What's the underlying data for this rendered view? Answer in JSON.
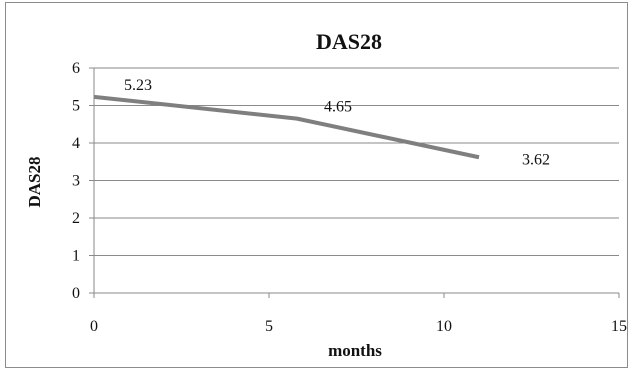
{
  "chart_data": {
    "type": "line",
    "title": "DAS28",
    "xlabel": "months",
    "ylabel": "DAS28",
    "xlim": [
      0,
      15
    ],
    "ylim": [
      0,
      6
    ],
    "xticks": [
      0,
      5,
      10,
      15
    ],
    "yticks": [
      0,
      1,
      2,
      3,
      4,
      5,
      6
    ],
    "grid": "horizontal",
    "legend": "none",
    "series": [
      {
        "x": [
          0,
          5.8,
          11
        ],
        "y": [
          5.23,
          4.65,
          3.62
        ],
        "labels": [
          "5.23",
          "4.65",
          "3.62"
        ],
        "color": "#7f7f7f"
      }
    ]
  }
}
